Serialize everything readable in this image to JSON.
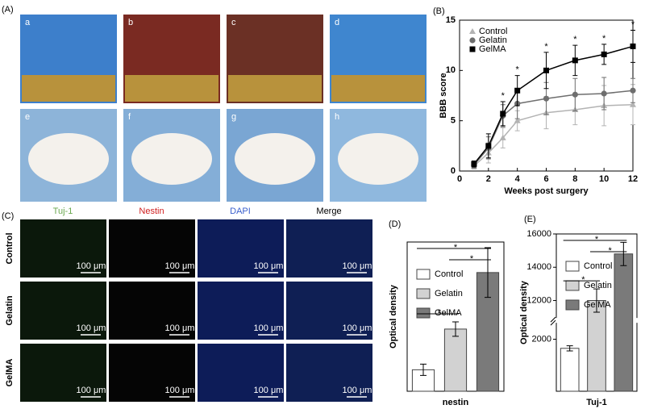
{
  "figure_a": {
    "panel_label": "(A)",
    "photo_labels": [
      "a",
      "b",
      "c",
      "d",
      "e",
      "f",
      "g",
      "h"
    ]
  },
  "figure_c": {
    "panel_label": "(C)",
    "columns": [
      "Tuj-1",
      "Nestin",
      "DAPI",
      "Merge"
    ],
    "rows": [
      "Control",
      "Gelatin",
      "GelMA"
    ],
    "scale_bar": "100 μm"
  },
  "chart_data": [
    {
      "type": "line",
      "panel_label": "(B)",
      "ylabel": "BBB score",
      "xlabel": "Weeks post surgery",
      "x": [
        1,
        2,
        3,
        4,
        6,
        8,
        10,
        12
      ],
      "xlim": [
        0,
        12
      ],
      "xticks": [
        0,
        2,
        4,
        6,
        8,
        10,
        12
      ],
      "ylim": [
        0,
        15
      ],
      "yticks": [
        0,
        5,
        10,
        15
      ],
      "legend": "upper left",
      "series": [
        {
          "name": "Control",
          "color": "#b3b3b3",
          "marker": "triangle",
          "values": [
            0.5,
            1.8,
            3.3,
            5.0,
            5.8,
            6.1,
            6.5,
            6.6
          ],
          "errors": [
            0.3,
            1.0,
            1.0,
            1.0,
            1.6,
            1.5,
            2.0,
            2.0
          ]
        },
        {
          "name": "Gelatin",
          "color": "#6e6e6e",
          "marker": "circle",
          "values": [
            0.6,
            2.3,
            5.5,
            6.7,
            7.2,
            7.6,
            7.7,
            8.0
          ],
          "errors": [
            0.3,
            1.1,
            1.1,
            1.5,
            1.6,
            1.6,
            1.6,
            1.2
          ]
        },
        {
          "name": "GelMA",
          "color": "#000000",
          "marker": "square",
          "values": [
            0.7,
            2.5,
            5.7,
            8.0,
            10.0,
            11.0,
            11.6,
            12.4
          ],
          "errors": [
            0.3,
            1.2,
            1.2,
            1.5,
            1.8,
            1.5,
            1.0,
            1.6
          ]
        }
      ],
      "annotations": [
        {
          "x": 3,
          "text": "*"
        },
        {
          "x": 4,
          "text": "*"
        },
        {
          "x": 6,
          "text": "*"
        },
        {
          "x": 8,
          "text": "*"
        },
        {
          "x": 10,
          "text": "*"
        },
        {
          "x": 12,
          "text": "*"
        }
      ]
    },
    {
      "type": "bar",
      "panel_label": "(D)",
      "ylabel": "Optical density",
      "xlabel": "nestin",
      "categories": [
        "Control",
        "Gelatin",
        "GelMA"
      ],
      "colors": [
        "#ffffff",
        "#d2d2d2",
        "#7a7a7a"
      ],
      "values": [
        95,
        275,
        525
      ],
      "errors": [
        25,
        32,
        110
      ],
      "ylim": [
        0,
        660
      ],
      "significance": [
        {
          "pair": [
            0,
            2
          ],
          "text": "*"
        },
        {
          "pair": [
            1,
            2
          ],
          "text": "*"
        },
        {
          "pair": [
            0,
            1
          ],
          "text": "*"
        }
      ]
    },
    {
      "type": "bar",
      "panel_label": "(E)",
      "ylabel": "Optical density",
      "xlabel": "Tuj-1",
      "categories": [
        "Control",
        "Gelatin",
        "GelMA"
      ],
      "colors": [
        "#ffffff",
        "#d2d2d2",
        "#7a7a7a"
      ],
      "values": [
        1650,
        12000,
        14800
      ],
      "errors": [
        100,
        700,
        700
      ],
      "ylim": [
        0,
        16000
      ],
      "ybreak": [
        2600,
        11000
      ],
      "yticks": [
        2000,
        12000,
        14000,
        16000
      ],
      "significance": [
        {
          "pair": [
            0,
            2
          ],
          "text": "*"
        },
        {
          "pair": [
            1,
            2
          ],
          "text": "*"
        },
        {
          "pair": [
            0,
            1
          ],
          "text": "*"
        }
      ]
    }
  ]
}
